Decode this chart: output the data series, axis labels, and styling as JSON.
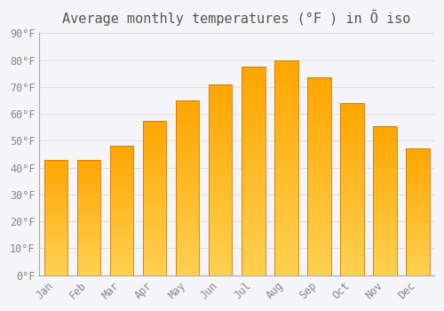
{
  "title": "Average monthly temperatures (°F ) in Ō iso",
  "months": [
    "Jan",
    "Feb",
    "Mar",
    "Apr",
    "May",
    "Jun",
    "Jul",
    "Aug",
    "Sep",
    "Oct",
    "Nov",
    "Dec"
  ],
  "values": [
    43,
    43,
    48,
    57.5,
    65,
    71,
    77.5,
    80,
    73.5,
    64,
    55.5,
    47
  ],
  "bar_color_top": "#FFA500",
  "bar_color_bottom": "#FFD050",
  "bar_edge_color": "#CC7700",
  "ylim": [
    0,
    90
  ],
  "yticks": [
    0,
    10,
    20,
    30,
    40,
    50,
    60,
    70,
    80,
    90
  ],
  "background_color": "#f5f5f8",
  "plot_bg_color": "#f5f5f8",
  "grid_color": "#ddddee",
  "title_fontsize": 11,
  "tick_fontsize": 8.5,
  "title_color": "#555555",
  "tick_color": "#888888"
}
